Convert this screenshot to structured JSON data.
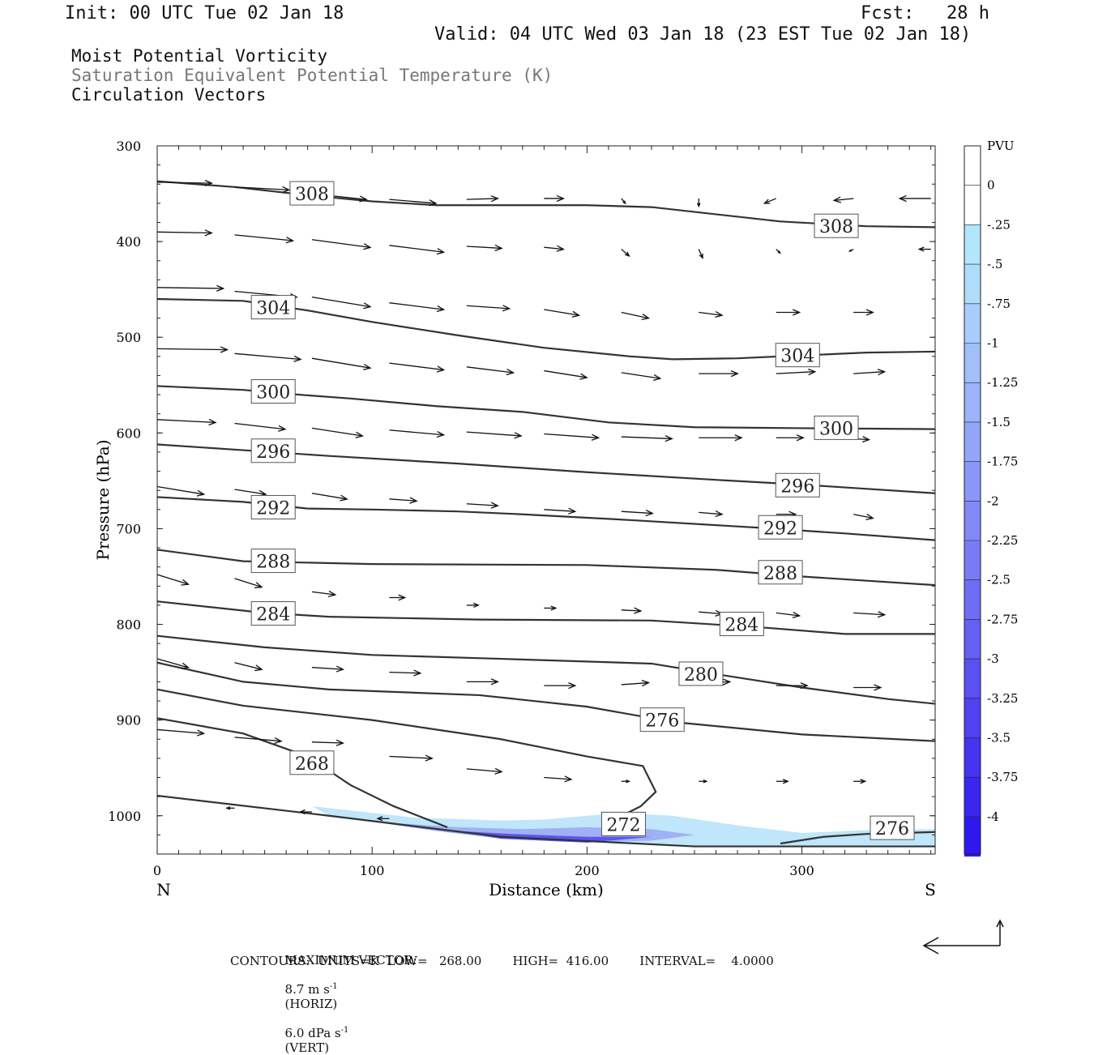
{
  "header": {
    "init": "Init: 00 UTC Tue 02 Jan 18",
    "fcst": "Fcst:   28 h",
    "valid": "Valid: 04 UTC Wed 03 Jan 18 (23 EST Tue 02 Jan 18)"
  },
  "titles": {
    "line1": "Moist Potential Vorticity",
    "line2": "Saturation Equivalent Potential Temperature (K)",
    "line3": "Circulation Vectors"
  },
  "colors": {
    "contour": "#333333",
    "pv_scale": [
      "#ffffff",
      "#ffffff",
      "#b3e5fc",
      "#b0dcfb",
      "#a9cdfb",
      "#a1c0fa",
      "#9ab3f9",
      "#92a5f8",
      "#8a97f7",
      "#8189f6",
      "#787bf5",
      "#6f6df4",
      "#655ff3",
      "#5b50f2",
      "#5042f1",
      "#4534f0",
      "#3a26ef",
      "#2e18ee"
    ]
  },
  "footer": {
    "max_vector_label": "MAXIMUM VECTOR:",
    "horiz": "8.7 m s",
    "horiz_unit": "(HORIZ)",
    "vert": "6.0 dPa s",
    "vert_unit": "(VERT)",
    "exp": "-1",
    "contours": "CONTOURS:  UNITS=K  LOW=   268.00        HIGH=  416.00        INTERVAL=    4.0000"
  },
  "chart_data": {
    "type": "cross-section",
    "xlabel": "Distance (km)",
    "ylabel": "Pressure (hPa)",
    "xlim": [
      0,
      362
    ],
    "ylim": [
      300,
      1040
    ],
    "x_ticks": [
      0,
      100,
      200,
      300
    ],
    "y_ticks": [
      300,
      400,
      500,
      600,
      700,
      800,
      900,
      1000
    ],
    "x_end_labels": {
      "left": "N",
      "right": "S"
    },
    "colorbar": {
      "unit": "PVU",
      "levels": [
        "0",
        "-.25",
        "-.5",
        "-.75",
        "-1",
        "-1.25",
        "-1.5",
        "-1.75",
        "-2",
        "-2.25",
        "-2.5",
        "-2.75",
        "-3",
        "-3.25",
        "-3.5",
        "-3.75",
        "-4"
      ]
    },
    "contours": [
      {
        "value": 308,
        "points": [
          [
            0,
            337
          ],
          [
            36,
            343
          ],
          [
            72,
            352
          ],
          [
            100,
            358
          ],
          [
            130,
            362
          ],
          [
            200,
            362
          ],
          [
            230,
            364
          ],
          [
            290,
            379
          ],
          [
            330,
            384
          ],
          [
            362,
            385
          ]
        ]
      },
      {
        "value": 304,
        "points": [
          [
            0,
            460
          ],
          [
            40,
            462
          ],
          [
            70,
            472
          ],
          [
            100,
            484
          ],
          [
            140,
            498
          ],
          [
            180,
            511
          ],
          [
            220,
            520
          ],
          [
            240,
            523
          ],
          [
            270,
            522
          ],
          [
            300,
            519
          ],
          [
            330,
            516
          ],
          [
            362,
            515
          ]
        ]
      },
      {
        "value": 300,
        "points": [
          [
            0,
            551
          ],
          [
            40,
            555
          ],
          [
            60,
            559
          ],
          [
            90,
            564
          ],
          [
            130,
            572
          ],
          [
            170,
            578
          ],
          [
            210,
            589
          ],
          [
            250,
            594
          ],
          [
            300,
            595
          ],
          [
            362,
            596
          ]
        ]
      },
      {
        "value": 296,
        "points": [
          [
            0,
            612
          ],
          [
            40,
            618
          ],
          [
            80,
            624
          ],
          [
            140,
            632
          ],
          [
            200,
            641
          ],
          [
            260,
            649
          ],
          [
            300,
            654
          ],
          [
            362,
            663
          ]
        ]
      },
      {
        "value": 292,
        "points": [
          [
            0,
            667
          ],
          [
            40,
            672
          ],
          [
            70,
            679
          ],
          [
            100,
            680
          ],
          [
            140,
            682
          ],
          [
            170,
            685
          ],
          [
            220,
            691
          ],
          [
            280,
            699
          ],
          [
            320,
            705
          ],
          [
            362,
            712
          ]
        ]
      },
      {
        "value": 288,
        "points": [
          [
            0,
            722
          ],
          [
            40,
            734
          ],
          [
            100,
            737
          ],
          [
            200,
            738
          ],
          [
            260,
            743
          ],
          [
            300,
            750
          ],
          [
            362,
            759
          ]
        ]
      },
      {
        "value": 284,
        "points": [
          [
            0,
            776
          ],
          [
            50,
            788
          ],
          [
            80,
            792
          ],
          [
            150,
            795
          ],
          [
            230,
            796
          ],
          [
            280,
            803
          ],
          [
            320,
            810
          ],
          [
            362,
            810
          ]
        ]
      },
      {
        "value": 280,
        "points": [
          [
            0,
            812
          ],
          [
            50,
            824
          ],
          [
            100,
            832
          ],
          [
            160,
            836
          ],
          [
            230,
            841
          ],
          [
            260,
            852
          ],
          [
            300,
            866
          ],
          [
            340,
            878
          ],
          [
            362,
            883
          ]
        ]
      },
      {
        "value": 276,
        "points": [
          [
            0,
            840
          ],
          [
            40,
            860
          ],
          [
            80,
            868
          ],
          [
            150,
            874
          ],
          [
            200,
            886
          ],
          [
            240,
            902
          ],
          [
            300,
            915
          ],
          [
            362,
            922
          ]
        ]
      },
      {
        "value": 272,
        "points": [
          [
            0,
            868
          ],
          [
            40,
            885
          ],
          [
            100,
            900
          ],
          [
            160,
            920
          ],
          [
            200,
            938
          ],
          [
            226,
            948
          ],
          [
            232,
            975
          ],
          [
            225,
            990
          ],
          [
            218,
            998
          ]
        ]
      },
      {
        "value": 268,
        "points": [
          [
            0,
            898
          ],
          [
            40,
            914
          ],
          [
            70,
            938
          ],
          [
            90,
            968
          ],
          [
            110,
            990
          ],
          [
            135,
            1012
          ]
        ]
      },
      {
        "value": 276,
        "points": [
          [
            290,
            1029
          ],
          [
            310,
            1022
          ],
          [
            330,
            1019
          ],
          [
            362,
            1017
          ]
        ]
      },
      {
        "value": 0,
        "points": [
          [
            0,
            979
          ],
          [
            80,
            1000
          ],
          [
            160,
            1022
          ],
          [
            250,
            1032
          ],
          [
            362,
            1032
          ]
        ]
      }
    ],
    "contour_labels": [
      {
        "value": "308",
        "x": 72,
        "p": 350
      },
      {
        "value": "308",
        "x": 316,
        "p": 384
      },
      {
        "value": "304",
        "x": 54,
        "p": 469
      },
      {
        "value": "304",
        "x": 298,
        "p": 519
      },
      {
        "value": "300",
        "x": 54,
        "p": 557
      },
      {
        "value": "300",
        "x": 316,
        "p": 595
      },
      {
        "value": "296",
        "x": 54,
        "p": 619
      },
      {
        "value": "296",
        "x": 298,
        "p": 655
      },
      {
        "value": "292",
        "x": 54,
        "p": 678
      },
      {
        "value": "292",
        "x": 290,
        "p": 699
      },
      {
        "value": "288",
        "x": 54,
        "p": 734
      },
      {
        "value": "288",
        "x": 290,
        "p": 746
      },
      {
        "value": "284",
        "x": 54,
        "p": 789
      },
      {
        "value": "284",
        "x": 272,
        "p": 800
      },
      {
        "value": "280",
        "x": 253,
        "p": 852
      },
      {
        "value": "276",
        "x": 235,
        "p": 900
      },
      {
        "value": "272",
        "x": 217,
        "p": 1009
      },
      {
        "value": "268",
        "x": 72,
        "p": 945
      },
      {
        "value": "276",
        "x": 342,
        "p": 1013
      }
    ],
    "pv_region": {
      "level": "-.5 to -2.25",
      "outline_top": [
        [
          72,
          990
        ],
        [
          120,
          1002
        ],
        [
          160,
          1005
        ],
        [
          180,
          1004
        ],
        [
          200,
          1000
        ],
        [
          215,
          997
        ],
        [
          240,
          1000
        ],
        [
          270,
          1010
        ],
        [
          300,
          1018
        ],
        [
          330,
          1015
        ],
        [
          362,
          1014
        ]
      ]
    },
    "vectors": [
      {
        "x": 0,
        "p": 338,
        "u": 28,
        "v": -2
      },
      {
        "x": 36,
        "p": 343,
        "u": 28,
        "v": -6
      },
      {
        "x": 72,
        "p": 350,
        "u": 28,
        "v": -12
      },
      {
        "x": 108,
        "p": 356,
        "u": 24,
        "v": -8
      },
      {
        "x": 144,
        "p": 356,
        "u": 16,
        "v": 2
      },
      {
        "x": 180,
        "p": 355,
        "u": 10,
        "v": 0
      },
      {
        "x": 216,
        "p": 355,
        "u": 2,
        "v": -10
      },
      {
        "x": 252,
        "p": 355,
        "u": 0,
        "v": -16
      },
      {
        "x": 288,
        "p": 355,
        "u": -6,
        "v": -10
      },
      {
        "x": 324,
        "p": 355,
        "u": -10,
        "v": -4
      },
      {
        "x": 360,
        "p": 355,
        "u": -16,
        "v": 0
      },
      {
        "x": 0,
        "p": 390,
        "u": 28,
        "v": -2
      },
      {
        "x": 36,
        "p": 393,
        "u": 30,
        "v": -12
      },
      {
        "x": 72,
        "p": 398,
        "u": 30,
        "v": -16
      },
      {
        "x": 108,
        "p": 404,
        "u": 28,
        "v": -14
      },
      {
        "x": 144,
        "p": 405,
        "u": 18,
        "v": -4
      },
      {
        "x": 180,
        "p": 406,
        "u": 10,
        "v": -4
      },
      {
        "x": 216,
        "p": 408,
        "u": 4,
        "v": -14
      },
      {
        "x": 252,
        "p": 408,
        "u": 2,
        "v": -18
      },
      {
        "x": 288,
        "p": 408,
        "u": 2,
        "v": -8
      },
      {
        "x": 324,
        "p": 408,
        "u": -2,
        "v": -4
      },
      {
        "x": 360,
        "p": 408,
        "u": -6,
        "v": 0
      },
      {
        "x": 0,
        "p": 448,
        "u": 34,
        "v": -2
      },
      {
        "x": 36,
        "p": 452,
        "u": 32,
        "v": -12
      },
      {
        "x": 72,
        "p": 458,
        "u": 30,
        "v": -20
      },
      {
        "x": 108,
        "p": 464,
        "u": 28,
        "v": -14
      },
      {
        "x": 144,
        "p": 467,
        "u": 22,
        "v": -6
      },
      {
        "x": 180,
        "p": 471,
        "u": 18,
        "v": -12
      },
      {
        "x": 216,
        "p": 474,
        "u": 14,
        "v": -12
      },
      {
        "x": 252,
        "p": 474,
        "u": 12,
        "v": -6
      },
      {
        "x": 288,
        "p": 474,
        "u": 12,
        "v": 0
      },
      {
        "x": 324,
        "p": 474,
        "u": 10,
        "v": 0
      },
      {
        "x": 0,
        "p": 512,
        "u": 36,
        "v": -2
      },
      {
        "x": 36,
        "p": 517,
        "u": 34,
        "v": -12
      },
      {
        "x": 72,
        "p": 522,
        "u": 30,
        "v": -20
      },
      {
        "x": 108,
        "p": 527,
        "u": 28,
        "v": -14
      },
      {
        "x": 144,
        "p": 531,
        "u": 24,
        "v": -12
      },
      {
        "x": 180,
        "p": 535,
        "u": 22,
        "v": -14
      },
      {
        "x": 216,
        "p": 537,
        "u": 20,
        "v": -12
      },
      {
        "x": 252,
        "p": 538,
        "u": 20,
        "v": 0
      },
      {
        "x": 288,
        "p": 538,
        "u": 20,
        "v": 4
      },
      {
        "x": 324,
        "p": 538,
        "u": 16,
        "v": 4
      },
      {
        "x": 0,
        "p": 586,
        "u": 30,
        "v": -6
      },
      {
        "x": 36,
        "p": 590,
        "u": 26,
        "v": -12
      },
      {
        "x": 72,
        "p": 595,
        "u": 26,
        "v": -16
      },
      {
        "x": 108,
        "p": 597,
        "u": 28,
        "v": -10
      },
      {
        "x": 144,
        "p": 599,
        "u": 28,
        "v": -8
      },
      {
        "x": 180,
        "p": 601,
        "u": 28,
        "v": -8
      },
      {
        "x": 216,
        "p": 604,
        "u": 26,
        "v": -4
      },
      {
        "x": 252,
        "p": 605,
        "u": 22,
        "v": 0
      },
      {
        "x": 288,
        "p": 605,
        "u": 14,
        "v": 0
      },
      {
        "x": 324,
        "p": 606,
        "u": 8,
        "v": -2
      },
      {
        "x": 0,
        "p": 656,
        "u": 24,
        "v": -16
      },
      {
        "x": 36,
        "p": 659,
        "u": 16,
        "v": -10
      },
      {
        "x": 72,
        "p": 663,
        "u": 18,
        "v": -12
      },
      {
        "x": 108,
        "p": 669,
        "u": 14,
        "v": -4
      },
      {
        "x": 144,
        "p": 674,
        "u": 16,
        "v": -4
      },
      {
        "x": 180,
        "p": 680,
        "u": 16,
        "v": -4
      },
      {
        "x": 216,
        "p": 682,
        "u": 16,
        "v": -4
      },
      {
        "x": 252,
        "p": 683,
        "u": 12,
        "v": -4
      },
      {
        "x": 288,
        "p": 685,
        "u": 10,
        "v": 0
      },
      {
        "x": 324,
        "p": 685,
        "u": 10,
        "v": -8
      },
      {
        "x": 0,
        "p": 748,
        "u": 16,
        "v": -20
      },
      {
        "x": 36,
        "p": 752,
        "u": 14,
        "v": -18
      },
      {
        "x": 72,
        "p": 766,
        "u": 12,
        "v": -6
      },
      {
        "x": 108,
        "p": 772,
        "u": 8,
        "v": 0
      },
      {
        "x": 144,
        "p": 780,
        "u": 6,
        "v": 0
      },
      {
        "x": 180,
        "p": 783,
        "u": 6,
        "v": 0
      },
      {
        "x": 216,
        "p": 785,
        "u": 10,
        "v": -2
      },
      {
        "x": 252,
        "p": 787,
        "u": 12,
        "v": -4
      },
      {
        "x": 288,
        "p": 788,
        "u": 12,
        "v": -6
      },
      {
        "x": 324,
        "p": 788,
        "u": 16,
        "v": -4
      },
      {
        "x": 0,
        "p": 836,
        "u": 16,
        "v": -18
      },
      {
        "x": 36,
        "p": 840,
        "u": 14,
        "v": -14
      },
      {
        "x": 72,
        "p": 845,
        "u": 16,
        "v": -4
      },
      {
        "x": 108,
        "p": 850,
        "u": 16,
        "v": -2
      },
      {
        "x": 144,
        "p": 860,
        "u": 16,
        "v": 0
      },
      {
        "x": 180,
        "p": 864,
        "u": 16,
        "v": 0
      },
      {
        "x": 216,
        "p": 863,
        "u": 14,
        "v": 4
      },
      {
        "x": 252,
        "p": 861,
        "u": 16,
        "v": 2
      },
      {
        "x": 288,
        "p": 864,
        "u": 16,
        "v": 0
      },
      {
        "x": 324,
        "p": 866,
        "u": 14,
        "v": 0
      },
      {
        "x": 0,
        "p": 910,
        "u": 24,
        "v": -8
      },
      {
        "x": 36,
        "p": 918,
        "u": 24,
        "v": -8
      },
      {
        "x": 72,
        "p": 923,
        "u": 16,
        "v": -2
      },
      {
        "x": 108,
        "p": 938,
        "u": 22,
        "v": -4
      },
      {
        "x": 144,
        "p": 951,
        "u": 18,
        "v": -6
      },
      {
        "x": 180,
        "p": 960,
        "u": 14,
        "v": -4
      },
      {
        "x": 216,
        "p": 964,
        "u": 4,
        "v": 0
      },
      {
        "x": 252,
        "p": 964,
        "u": 4,
        "v": 0
      },
      {
        "x": 288,
        "p": 964,
        "u": 6,
        "v": 0
      },
      {
        "x": 324,
        "p": 964,
        "u": 6,
        "v": 0
      },
      {
        "x": 36,
        "p": 992,
        "u": -4,
        "v": 0
      },
      {
        "x": 72,
        "p": 996,
        "u": -6,
        "v": 0
      },
      {
        "x": 108,
        "p": 1003,
        "u": -6,
        "v": 0
      }
    ]
  }
}
